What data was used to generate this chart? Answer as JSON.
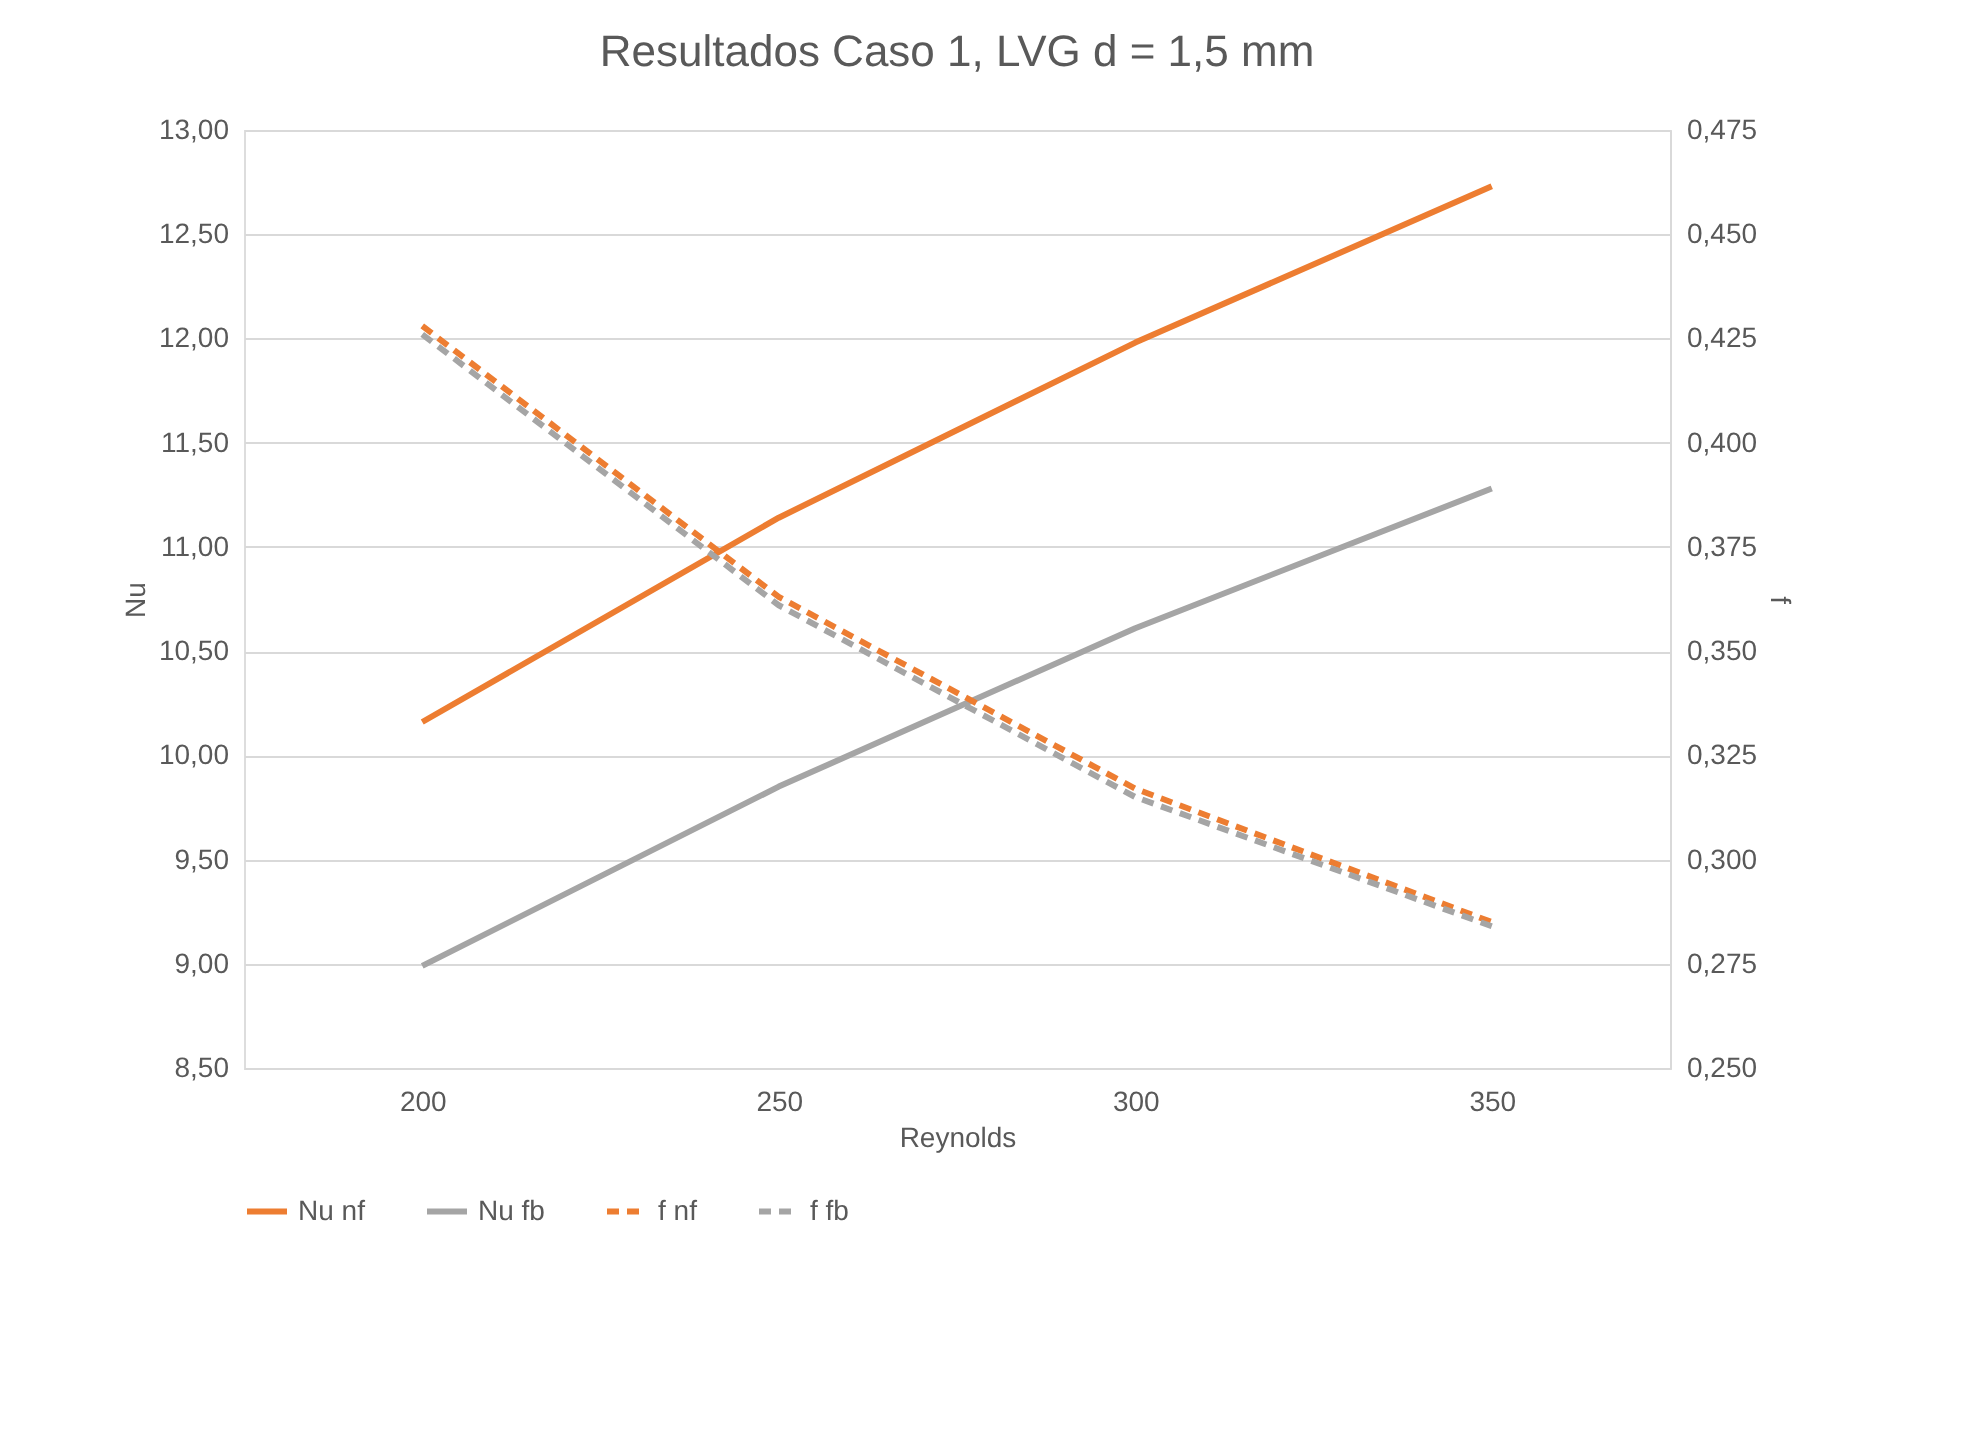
{
  "chart_data": {
    "type": "line",
    "title": "Resultados Caso 1, LVG d = 1,5 mm",
    "xlabel": "Reynolds",
    "ylabel": "Nu",
    "y2label": "f",
    "categories": [
      "200",
      "250",
      "300",
      "350"
    ],
    "series": [
      {
        "name": "Nu nf",
        "color": "#ed7d31",
        "values": [
          10.16,
          11.14,
          11.98,
          12.73
        ],
        "line_style": "solid"
      },
      {
        "name": "Nu fb",
        "color": "#a5a5a5",
        "values": [
          8.99,
          9.85,
          10.61,
          11.28
        ],
        "line_style": "solid"
      },
      {
        "name": "f nf",
        "color": "#ed7d31",
        "values": [
          0.428,
          0.363,
          0.317,
          0.285
        ],
        "axis": "y2",
        "line_style": "dashed"
      },
      {
        "name": "f fb",
        "color": "#a5a5a5",
        "values": [
          0.426,
          0.361,
          0.315,
          0.284
        ],
        "axis": "y2",
        "line_style": "dashed"
      }
    ],
    "ylim": [
      8.5,
      13
    ],
    "yticks": [
      {
        "value": 8.5,
        "label": "8,50"
      },
      {
        "value": 9,
        "label": "9,00"
      },
      {
        "value": 9.5,
        "label": "9,50"
      },
      {
        "value": 10,
        "label": "10,00"
      },
      {
        "value": 10.5,
        "label": "10,50"
      },
      {
        "value": 11,
        "label": "11,00"
      },
      {
        "value": 11.5,
        "label": "11,50"
      },
      {
        "value": 12,
        "label": "12,00"
      },
      {
        "value": 12.5,
        "label": "12,50"
      },
      {
        "value": 13,
        "label": "13,00"
      }
    ],
    "y2lim": [
      0.25,
      0.475
    ],
    "y2ticks": [
      {
        "value": 0.25,
        "label": "0,250"
      },
      {
        "value": 0.275,
        "label": "0,275"
      },
      {
        "value": 0.3,
        "label": "0,300"
      },
      {
        "value": 0.325,
        "label": "0,325"
      },
      {
        "value": 0.35,
        "label": "0,350"
      },
      {
        "value": 0.375,
        "label": "0,375"
      },
      {
        "value": 0.4,
        "label": "0,400"
      },
      {
        "value": 0.425,
        "label": "0,425"
      },
      {
        "value": 0.45,
        "label": "0,450"
      },
      {
        "value": 0.475,
        "label": "0,475"
      }
    ],
    "grid": "y",
    "legend": "bottom",
    "marker": "none"
  }
}
